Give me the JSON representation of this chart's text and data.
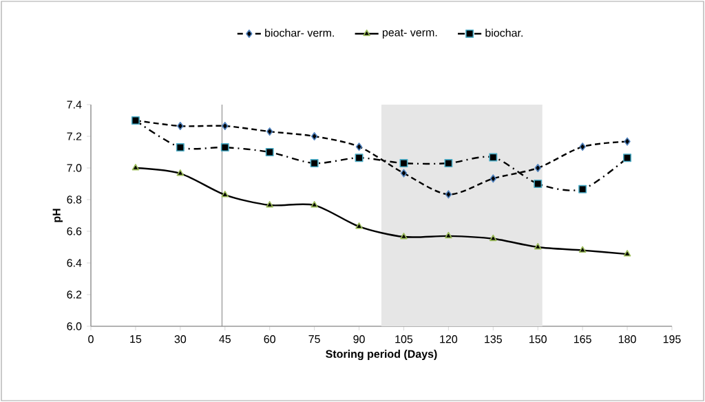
{
  "chart_data": {
    "type": "line",
    "xlabel": "Storing period (Days)",
    "ylabel": "pH",
    "x": [
      15,
      30,
      45,
      60,
      75,
      90,
      105,
      120,
      135,
      150,
      165,
      180
    ],
    "series": [
      {
        "name": "biochar- verm.",
        "color": "#4f81bd",
        "marker": "diamond",
        "line_style": "dashed",
        "values": [
          7.3,
          7.265,
          7.265,
          7.23,
          7.2,
          7.134,
          6.967,
          6.833,
          6.933,
          7.0,
          7.134,
          7.167
        ]
      },
      {
        "name": "peat- verm.",
        "color": "#9bbb59",
        "marker": "triangle",
        "line_style": "solid",
        "values": [
          7.0,
          6.965,
          6.83,
          6.765,
          6.765,
          6.63,
          6.565,
          6.57,
          6.553,
          6.5,
          6.48,
          6.456
        ]
      },
      {
        "name": "biochar.",
        "color": "#4bacc6",
        "marker": "square",
        "line_style": "dashdot",
        "values": [
          7.3,
          7.13,
          7.13,
          7.1,
          7.03,
          7.064,
          7.03,
          7.03,
          7.067,
          6.9,
          6.866,
          7.064
        ]
      }
    ],
    "xlim": [
      0,
      195
    ],
    "xticks": [
      0,
      15,
      30,
      45,
      60,
      75,
      90,
      105,
      120,
      135,
      150,
      165,
      180,
      195
    ],
    "ylim": [
      6.0,
      7.4
    ],
    "yticks": [
      {
        "value": 6.0,
        "label": "6.0"
      },
      {
        "value": 6.2,
        "label": "6.2"
      },
      {
        "value": 6.4,
        "label": "6.4"
      },
      {
        "value": 6.6,
        "label": "6.6"
      },
      {
        "value": 6.8,
        "label": "6.8"
      },
      {
        "value": 7.0,
        "label": "7.0"
      },
      {
        "value": 7.2,
        "label": "7.2"
      },
      {
        "value": 7.4,
        "label": "7.4"
      }
    ],
    "grid": false,
    "legend": "top",
    "ref_lines": [
      {
        "axis": "x",
        "value": 44,
        "color": "#808080"
      }
    ],
    "bands": [
      {
        "axis": "x",
        "from": 97.5,
        "to": 151.5,
        "color": "#e6e6e6"
      }
    ]
  }
}
